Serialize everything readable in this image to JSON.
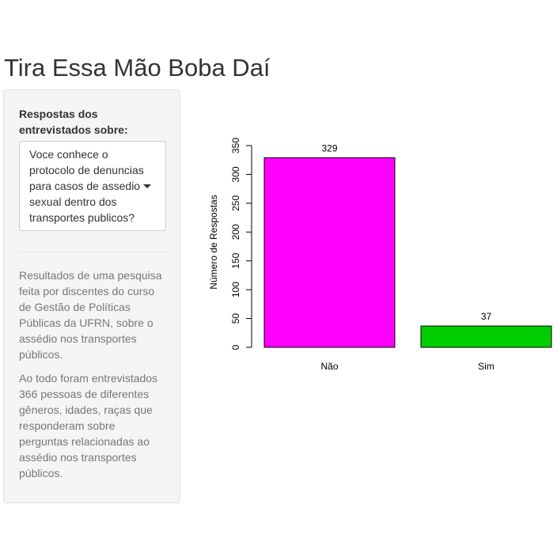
{
  "app": {
    "title": "Tira Essa Mão Boba Daí"
  },
  "sidebar": {
    "control_label": "Respostas dos entrevistados sobre:",
    "selected_question": "Voce conhece o protocolo de denuncias para casos de assedio sexual dentro dos transportes publicos?",
    "description_1": "Resultados de uma pesquisa feita por discentes do curso de Gestão de Políticas Públicas da UFRN, sobre o assédio nos transportes públicos.",
    "description_2": "Ao todo foram entrevistados 366 pessoas de diferentes gêneros, idades, raças que responderam sobre perguntas relacionadas ao assédio nos transportes públicos."
  },
  "icons": {
    "dropdown": "caret-down-icon"
  },
  "chart_data": {
    "type": "bar",
    "categories": [
      "Não",
      "Sim"
    ],
    "values": [
      329,
      37
    ],
    "data_labels": [
      "329",
      "37"
    ],
    "colors": [
      "#ff00ff",
      "#00cd00"
    ],
    "title": "",
    "xlabel": "",
    "ylabel": "Número de Respostas",
    "ylim": [
      0,
      350
    ],
    "yticks": [
      0,
      50,
      100,
      150,
      200,
      250,
      300,
      350
    ],
    "grid": false,
    "legend": "none"
  }
}
